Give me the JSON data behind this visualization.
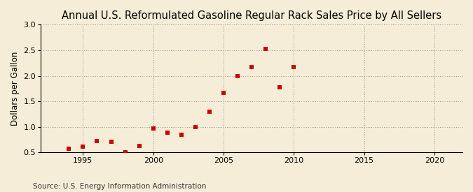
{
  "title": "Annual U.S. Reformulated Gasoline Regular Rack Sales Price by All Sellers",
  "ylabel": "Dollars per Gallon",
  "source": "Source: U.S. Energy Information Administration",
  "background_color": "#f5edd8",
  "plot_bg_color": "#f5edd8",
  "years": [
    1994,
    1995,
    1996,
    1997,
    1998,
    1999,
    2000,
    2001,
    2002,
    2003,
    2004,
    2005,
    2006,
    2007,
    2008,
    2009,
    2010
  ],
  "values": [
    0.57,
    0.62,
    0.72,
    0.71,
    0.5,
    0.63,
    0.97,
    0.88,
    0.85,
    0.99,
    1.3,
    1.67,
    2.0,
    2.17,
    2.53,
    1.77,
    2.17
  ],
  "marker_color": "#cc0000",
  "marker_size": 18,
  "xlim": [
    1992,
    2022
  ],
  "ylim": [
    0.5,
    3.0
  ],
  "xticks": [
    1995,
    2000,
    2005,
    2010,
    2015,
    2020
  ],
  "yticks": [
    0.5,
    1.0,
    1.5,
    2.0,
    2.5,
    3.0
  ],
  "title_fontsize": 10.5,
  "label_fontsize": 8.5,
  "tick_fontsize": 8,
  "source_fontsize": 7.5
}
